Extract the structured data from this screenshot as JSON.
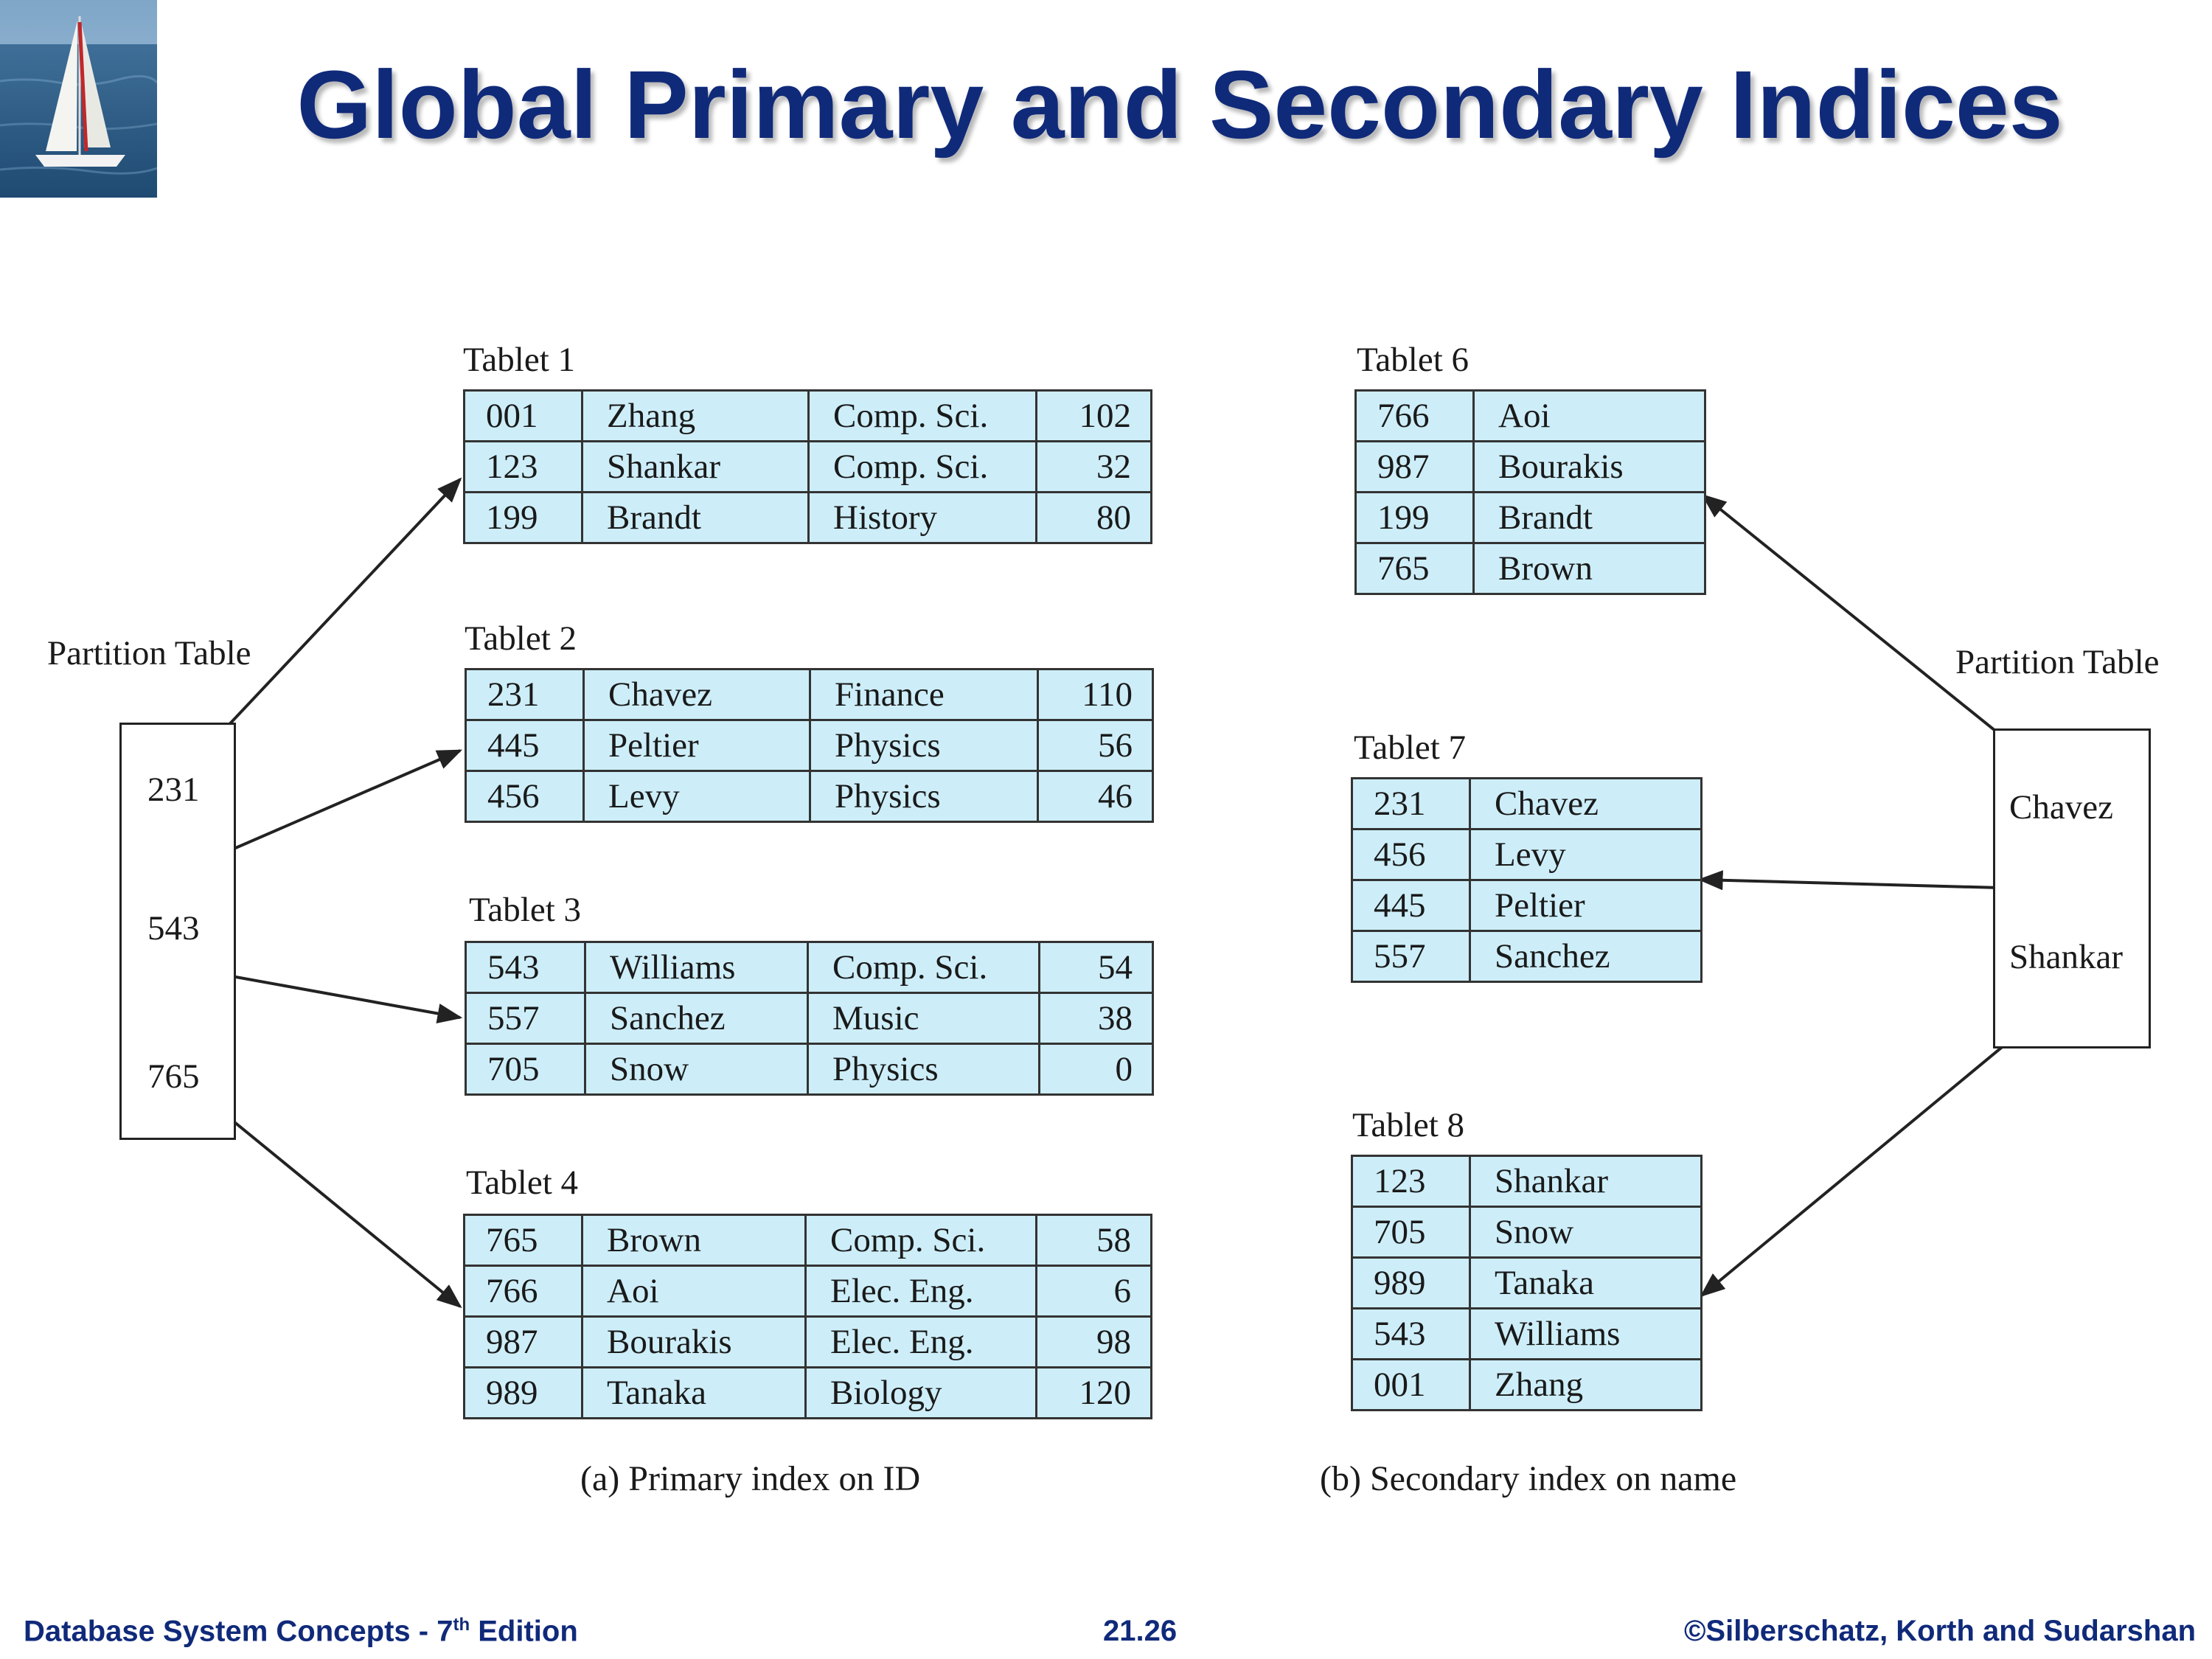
{
  "slide": {
    "title": "Global Primary and Secondary Indices"
  },
  "left": {
    "partition_label": "Partition Table",
    "partition_values": [
      "231",
      "543",
      "765"
    ],
    "caption": "(a) Primary index on ID",
    "tablets": [
      {
        "label": "Tablet 1",
        "rows": [
          [
            "001",
            "Zhang",
            "Comp. Sci.",
            "102"
          ],
          [
            "123",
            "Shankar",
            "Comp. Sci.",
            "32"
          ],
          [
            "199",
            "Brandt",
            "History",
            "80"
          ]
        ]
      },
      {
        "label": "Tablet 2",
        "rows": [
          [
            "231",
            "Chavez",
            "Finance",
            "110"
          ],
          [
            "445",
            "Peltier",
            "Physics",
            "56"
          ],
          [
            "456",
            "Levy",
            "Physics",
            "46"
          ]
        ]
      },
      {
        "label": "Tablet 3",
        "rows": [
          [
            "543",
            "Williams",
            "Comp. Sci.",
            "54"
          ],
          [
            "557",
            "Sanchez",
            "Music",
            "38"
          ],
          [
            "705",
            "Snow",
            "Physics",
            "0"
          ]
        ]
      },
      {
        "label": "Tablet 4",
        "rows": [
          [
            "765",
            "Brown",
            "Comp. Sci.",
            "58"
          ],
          [
            "766",
            "Aoi",
            "Elec. Eng.",
            "6"
          ],
          [
            "987",
            "Bourakis",
            "Elec. Eng.",
            "98"
          ],
          [
            "989",
            "Tanaka",
            "Biology",
            "120"
          ]
        ]
      }
    ]
  },
  "right": {
    "partition_label": "Partition Table",
    "partition_values": [
      "Chavez",
      "Shankar"
    ],
    "caption": "(b) Secondary index on name",
    "tablets": [
      {
        "label": "Tablet 6",
        "rows": [
          [
            "766",
            "Aoi"
          ],
          [
            "987",
            "Bourakis"
          ],
          [
            "199",
            "Brandt"
          ],
          [
            "765",
            "Brown"
          ]
        ]
      },
      {
        "label": "Tablet 7",
        "rows": [
          [
            "231",
            "Chavez"
          ],
          [
            "456",
            "Levy"
          ],
          [
            "445",
            "Peltier"
          ],
          [
            "557",
            "Sanchez"
          ]
        ]
      },
      {
        "label": "Tablet 8",
        "rows": [
          [
            "123",
            "Shankar"
          ],
          [
            "705",
            "Snow"
          ],
          [
            "989",
            "Tanaka"
          ],
          [
            "543",
            "Williams"
          ],
          [
            "001",
            "Zhang"
          ]
        ]
      }
    ]
  },
  "footer": {
    "left_prefix": "Database System Concepts - 7",
    "left_sup": "th",
    "left_suffix": " Edition",
    "page": "21.26",
    "copyright": "©Silberschatz, Korth and Sudarshan"
  },
  "colors": {
    "title": "#102a7a",
    "tablet_fill": "#cdeef9",
    "footer": "#102a7a"
  }
}
